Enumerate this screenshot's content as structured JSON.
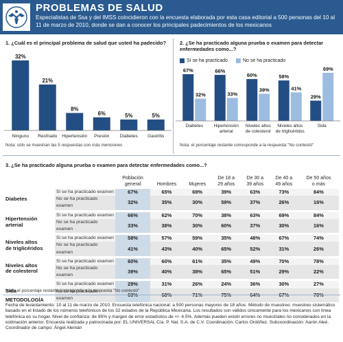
{
  "header": {
    "title": "PROBLEMAS DE SALUD",
    "subtitle": "Especialistas de Ssa y del IMSS coincidieron con la encuesta elaborada por esta casa editorial a 500 personas del 10 al 11 de marzo de 2010, donde se dan a conocer los principales padecimientos de los mexicanos"
  },
  "colors": {
    "header": "#2a5a8f",
    "dark_bar": "#234e84",
    "light_bar": "#9dbde0",
    "highlight": "#cddbe8"
  },
  "chart1": {
    "question": "1. ¿Cuál es el principal problema de salud que usted ha padecido?",
    "note": "Nota: sólo se muestran las 5 respuestas con más menciones"
  },
  "chart2": {
    "question": "2. ¿Se ha practicado alguna prueba o examen para detectar enfermedades como...?",
    "note": "Nota: el porcentaje restante corresponde a la respuesta \"No contestó\"",
    "legend_yes": "Sí se ha practicado",
    "legend_no": "No se ha practicado"
  },
  "chart_data": [
    {
      "type": "bar",
      "title": "1. ¿Cuál es el principal problema de salud que usted ha padecido?",
      "categories": [
        "Ninguno",
        "Resfriado",
        "Hipertensión",
        "Presión",
        "Diabetes",
        "Gastritis"
      ],
      "values": [
        32,
        21,
        8,
        6,
        5,
        5
      ],
      "labels": [
        "32%",
        "21%",
        "8%",
        "6%",
        "5%",
        "5%"
      ],
      "ylim": [
        0,
        32
      ],
      "grid": false
    },
    {
      "type": "bar",
      "title": "2. ¿Se ha practicado alguna prueba o examen para detectar enfermedades como...?",
      "categories": [
        [
          "Diabetes"
        ],
        [
          "Hipertensión",
          "arterial"
        ],
        [
          "Niveles altos",
          "de colesterol"
        ],
        [
          "Niveles altos",
          "de triglicéridos"
        ],
        [
          "Sida"
        ]
      ],
      "series": [
        {
          "name": "Sí se ha practicado",
          "values": [
            67,
            66,
            60,
            58,
            29
          ],
          "labels": [
            "67%",
            "66%",
            "60%",
            "58%",
            "29%"
          ]
        },
        {
          "name": "No se ha practicado",
          "values": [
            32,
            33,
            39,
            41,
            69
          ],
          "labels": [
            "32%",
            "33%",
            "39%",
            "41%",
            "69%"
          ]
        }
      ],
      "ylim": [
        0,
        69
      ],
      "legend": "top-left",
      "grid": false
    },
    {
      "type": "table",
      "title": "3. ¿Se ha practicado alguna prueba o examen para detectar enfermedades como...?",
      "note": "Nota: el porcentaje restante corresponde a la respuesta \"No contestó\"",
      "columns": [
        [
          "Población",
          "general"
        ],
        [
          "Hombres"
        ],
        [
          "Mujeres"
        ],
        [
          "De 18 a",
          "29 años"
        ],
        [
          "De 30 a",
          "39 años"
        ],
        [
          "De 40 a",
          "49 años"
        ],
        [
          "De 50 años",
          "o más"
        ]
      ],
      "groups": [
        {
          "name": [
            "Diabetes"
          ],
          "rows": [
            {
              "label": "Si se ha practicado  examen",
              "values": [
                "67%",
                "65%",
                "69%",
                "39%",
                "63%",
                "73%",
                "84%"
              ]
            },
            {
              "label": "No se ha practicado  examen",
              "values": [
                "32%",
                "35%",
                "30%",
                "59%",
                "37%",
                "26%",
                "16%"
              ]
            }
          ]
        },
        {
          "name": [
            "Hipertensión",
            "arterial"
          ],
          "rows": [
            {
              "label": "Si se ha practicado  examen",
              "values": [
                "66%",
                "62%",
                "70%",
                "38%",
                "63%",
                "69%",
                "84%"
              ]
            },
            {
              "label": "No se ha practicado  examen",
              "values": [
                "33%",
                "38%",
                "30%",
                "60%",
                "37%",
                "30%",
                "16%"
              ]
            }
          ]
        },
        {
          "name": [
            "Niveles altos",
            "de triglicéridos"
          ],
          "rows": [
            {
              "label": "Si se ha practicado  examen",
              "values": [
                "58%",
                "57%",
                "59%",
                "35%",
                "48%",
                "67%",
                "74%"
              ]
            },
            {
              "label": "No se ha practicado  examen",
              "values": [
                "41%",
                "43%",
                "40%",
                "65%",
                "52%",
                "31%",
                "26%"
              ]
            }
          ]
        },
        {
          "name": [
            "Niveles altos",
            "de colesterol"
          ],
          "rows": [
            {
              "label": "Si se ha practicado  examen",
              "values": [
                "60%",
                "60%",
                "61%",
                "35%",
                "49%",
                "70%",
                "78%"
              ]
            },
            {
              "label": "No se ha practicado  examen",
              "values": [
                "39%",
                "40%",
                "38%",
                "65%",
                "51%",
                "29%",
                "22%"
              ]
            }
          ]
        },
        {
          "name": [
            "Sida"
          ],
          "rows": [
            {
              "label": "Si se ha practicado  examen",
              "values": [
                "29%",
                "31%",
                "26%",
                "24%",
                "36%",
                "30%",
                "27%"
              ]
            },
            {
              "label": "No se ha practicado  examen",
              "values": [
                "69%",
                "68%",
                "71%",
                "75%",
                "64%",
                "67%",
                "70%"
              ]
            }
          ]
        }
      ]
    }
  ],
  "methodology": {
    "title": "METODOLOGÍA",
    "text": "Fecha de levantamiento: 10 al 11 de marzo de 2010. Encuesta telefónica nacional: a 500 personas mayores de 18 años. Método de muestreo: muestreo sistemático basado en el listado de los números telefónicos de los 32 estados de la República Mexicana. Los resultados son válidos únicamente para los mexicanos con línea telefónica en su hogar. Nivel de confianza: de 95% y margen de error estadístico de +/- 4.5%. Además pueden existir errores no muestrales no considerados en la estimación anterior. Encuesta realizada y patrocinada por: EL UNIVERSAL Cía. P. Nal. S.A. de C.V. Coordinación: Carlos Ordóñez. Subcoordinación: Aarón Aleé. Coordinador de campo: Ángel Alemán"
  }
}
